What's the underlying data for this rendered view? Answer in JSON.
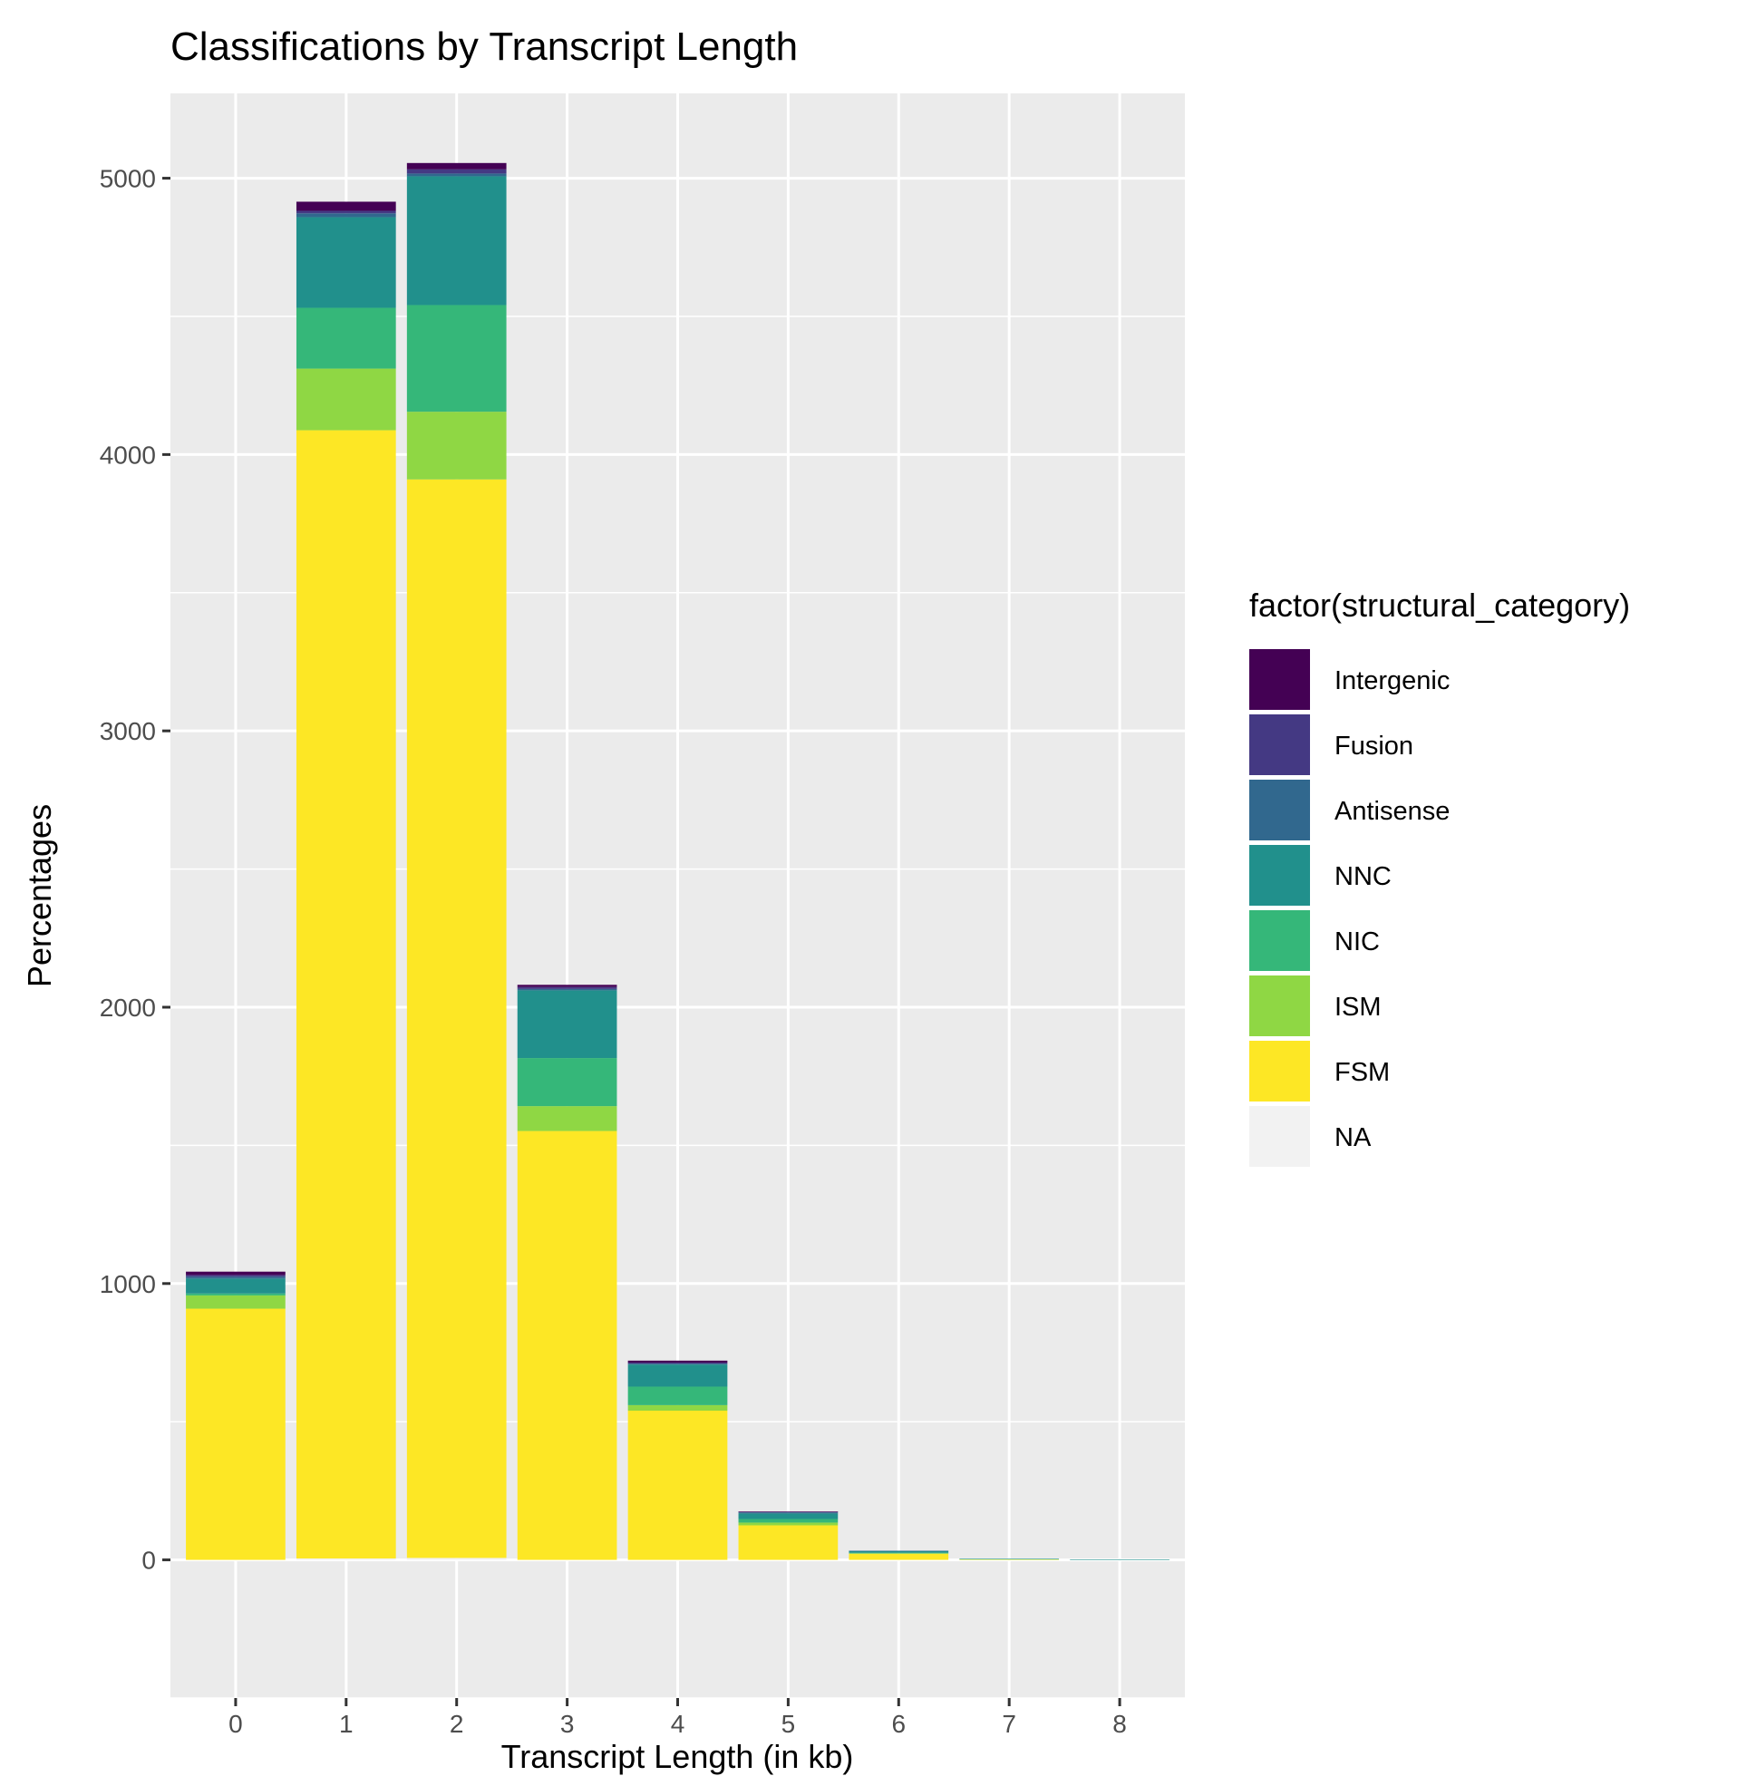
{
  "chart_data": {
    "type": "bar",
    "stacked": true,
    "title": "Classifications by Transcript Length",
    "xlabel": "Transcript Length (in kb)",
    "ylabel": "Percentages",
    "categories": [
      "0",
      "1",
      "2",
      "3",
      "4",
      "5",
      "6",
      "7",
      "8"
    ],
    "x_values": [
      0,
      1,
      2,
      3,
      4,
      5,
      6,
      7,
      8
    ],
    "xlim": [
      -0.59,
      8.59
    ],
    "ylim": [
      -500,
      5307
    ],
    "y_ticks": [
      0,
      1000,
      2000,
      3000,
      4000,
      5000
    ],
    "y_tick_labels": [
      "0",
      "1000",
      "2000",
      "3000",
      "4000",
      "5000"
    ],
    "x_tick_labels": [
      "0",
      "1",
      "2",
      "3",
      "4",
      "5",
      "6",
      "7",
      "8"
    ],
    "grid": true,
    "legend": {
      "title": "factor(structural_category)",
      "position": "right"
    },
    "stack_order_bottom_to_top": [
      "NA",
      "FSM",
      "ISM",
      "NIC",
      "NNC",
      "Antisense",
      "Fusion",
      "Intergenic"
    ],
    "series": [
      {
        "name": "Intergenic",
        "color": "#440154",
        "values": [
          12,
          33,
          23,
          8,
          7,
          1,
          0,
          0,
          0
        ]
      },
      {
        "name": "Fusion",
        "color": "#443983",
        "values": [
          6,
          9,
          15,
          7,
          4,
          2,
          0,
          0,
          0
        ]
      },
      {
        "name": "Antisense",
        "color": "#31688E",
        "values": [
          7,
          14,
          10,
          5,
          3,
          4,
          1,
          0,
          0
        ]
      },
      {
        "name": "NNC",
        "color": "#21908C",
        "values": [
          54,
          328,
          466,
          245,
          80,
          20,
          6,
          1,
          2
        ]
      },
      {
        "name": "NIC",
        "color": "#35B779",
        "values": [
          7,
          220,
          386,
          174,
          67,
          13,
          2,
          0,
          0
        ]
      },
      {
        "name": "ISM",
        "color": "#8FD744",
        "values": [
          48,
          223,
          245,
          90,
          20,
          10,
          2,
          1,
          0
        ]
      },
      {
        "name": "FSM",
        "color": "#FDE725",
        "values": [
          909,
          4083,
          3903,
          1552,
          540,
          125,
          22,
          2,
          0
        ]
      },
      {
        "name": "NA",
        "color": "#F2F2F2",
        "values": [
          0,
          5,
          7,
          0,
          0,
          0,
          0,
          0,
          0
        ]
      }
    ]
  },
  "colors": {
    "panel_background": "#EBEBEB",
    "gridline": "#FFFFFF",
    "tick_text": "#4D4D4D"
  }
}
